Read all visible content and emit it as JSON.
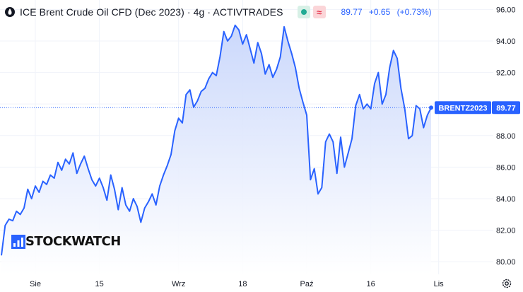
{
  "header": {
    "title": "ICE Brent Crude Oil CFD (Dec 2023) · 4g · ACTIVTRADES",
    "red_badge_glyph": "≈",
    "last": "89.77",
    "change": "+0.65",
    "change_pct": "(+0.73%)",
    "icons": [
      "oil-drop-icon",
      "green-badge-icon",
      "red-badge-icon"
    ]
  },
  "logo": {
    "text": "STOCKWATCH",
    "icon": "bar-chart-icon"
  },
  "settings_icon": "gear-icon",
  "colors": {
    "line": "#2962ff",
    "fill_top": "#c8d6fb",
    "fill_bottom": "#ffffff",
    "grid": "#f0f3fa",
    "price_line": "#2962ff",
    "badge_bg": "#2962ff"
  },
  "chart_data": {
    "type": "area",
    "title": "ICE Brent Crude Oil CFD (Dec 2023) · 4g · ACTIVTRADES",
    "xlabel": "",
    "ylabel": "",
    "ylim": [
      79.2,
      96.6
    ],
    "grid": true,
    "y_ticks": [
      "80.00",
      "82.00",
      "84.00",
      "86.00",
      "88.00",
      "90.00",
      "92.00",
      "94.00",
      "96.00"
    ],
    "x_ticks": [
      {
        "label": "Sie",
        "index": 9
      },
      {
        "label": "15",
        "index": 26
      },
      {
        "label": "Wrz",
        "index": 47
      },
      {
        "label": "18",
        "index": 64
      },
      {
        "label": "Paź",
        "index": 81
      },
      {
        "label": "16",
        "index": 98
      },
      {
        "label": "Lis",
        "index": 116
      }
    ],
    "x_count": 120,
    "last_price": {
      "symbol": "BRENTZ2023",
      "value": "89.77",
      "y": 89.77
    },
    "series": [
      {
        "values": [
          80.4,
          82.3,
          82.7,
          82.6,
          83.2,
          83.0,
          83.4,
          84.6,
          84.0,
          84.8,
          84.4,
          85.1,
          84.9,
          85.5,
          85.3,
          86.3,
          85.8,
          86.5,
          86.2,
          86.9,
          85.6,
          86.2,
          86.7,
          85.9,
          85.2,
          84.8,
          85.3,
          84.7,
          83.9,
          85.5,
          84.6,
          83.3,
          84.7,
          83.6,
          83.2,
          84.0,
          83.5,
          82.5,
          83.4,
          83.8,
          84.3,
          83.6,
          84.8,
          85.5,
          86.1,
          86.8,
          88.3,
          89.1,
          88.8,
          90.6,
          90.9,
          89.8,
          90.2,
          90.8,
          91.0,
          91.6,
          92.0,
          91.8,
          93.0,
          94.6,
          94.0,
          94.3,
          95.0,
          94.7,
          93.8,
          94.4,
          93.5,
          92.6,
          93.9,
          93.2,
          91.9,
          92.5,
          91.7,
          92.2,
          93.0,
          94.9,
          94.0,
          93.2,
          92.3,
          91.0,
          90.1,
          89.3,
          85.2,
          85.9,
          84.3,
          84.7,
          87.6,
          88.1,
          87.6,
          85.6,
          87.9,
          86.0,
          86.9,
          87.8,
          89.9,
          90.6,
          89.7,
          90.0,
          89.7,
          91.3,
          92.0,
          90.0,
          90.6,
          92.3,
          93.4,
          92.9,
          91.0,
          89.7,
          87.8,
          88.0,
          89.9,
          89.7,
          88.5,
          89.3,
          89.77
        ]
      }
    ]
  }
}
